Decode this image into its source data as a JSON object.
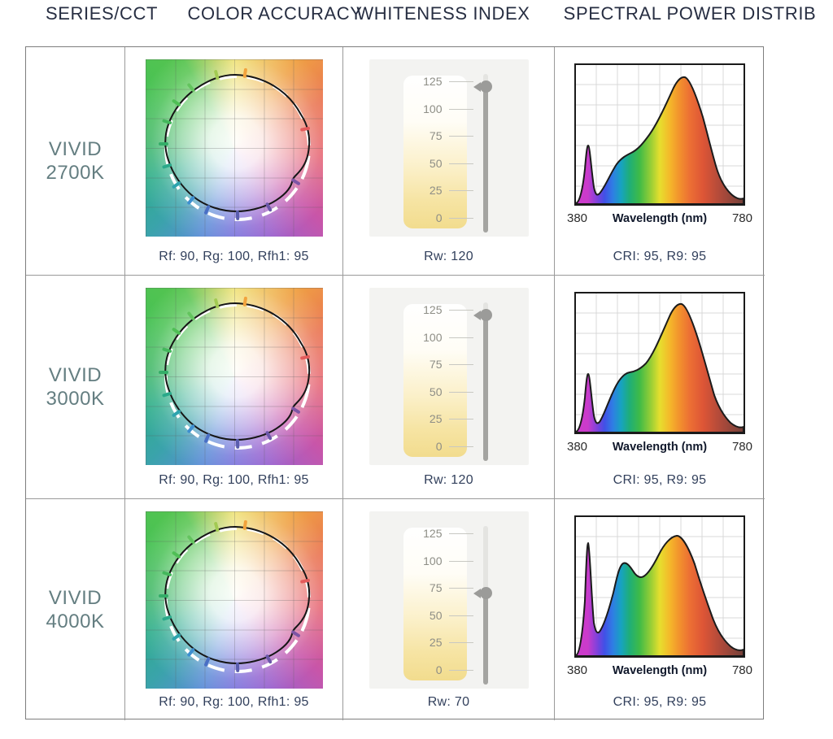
{
  "header": {
    "columns": [
      "SERIES/CCT",
      "COLOR ACCURACY",
      "WHITENESS INDEX",
      "SPECTRAL POWER DISTRIB"
    ]
  },
  "whiteness_scale": [
    "125",
    "100",
    "75",
    "50",
    "25",
    "0"
  ],
  "spd_axis": {
    "min": "380",
    "max": "780",
    "label": "Wavelength (nm)"
  },
  "colors": {
    "header_text": "#272e42",
    "stat_text": "#32405c",
    "series_text": "#647e81",
    "gauge_track": "#a4a4a1",
    "gauge_knob": "#9b9b99",
    "gauge_panel": "#f3f3f1"
  },
  "rows": [
    {
      "series": {
        "line1": "VIVID",
        "line2": "2700K"
      },
      "color_accuracy": {
        "stats": "Rf: 90, Rg: 100, Rfh1: 95",
        "rf": 90,
        "rg": 100,
        "rfh1": 95
      },
      "whiteness": {
        "value": 120,
        "label": "Rw: 120"
      },
      "spd": {
        "stats": "CRI: 95, R9: 95",
        "cri": 95,
        "r9": 95
      }
    },
    {
      "series": {
        "line1": "VIVID",
        "line2": "3000K"
      },
      "color_accuracy": {
        "stats": "Rf: 90, Rg: 100, Rfh1: 95",
        "rf": 90,
        "rg": 100,
        "rfh1": 95
      },
      "whiteness": {
        "value": 120,
        "label": "Rw: 120"
      },
      "spd": {
        "stats": "CRI: 95, R9: 95",
        "cri": 95,
        "r9": 95
      }
    },
    {
      "series": {
        "line1": "VIVID",
        "line2": "4000K"
      },
      "color_accuracy": {
        "stats": "Rf: 90, Rg: 100, Rfh1: 95",
        "rf": 90,
        "rg": 100,
        "rfh1": 95
      },
      "whiteness": {
        "value": 70,
        "label": "Rw: 70"
      },
      "spd": {
        "stats": "CRI: 95, R9: 95",
        "cri": 95,
        "r9": 95
      }
    }
  ],
  "chart_data": [
    {
      "row": "VIVID 2700K",
      "color_accuracy": {
        "type": "tm30-color-vector",
        "rf": 90,
        "rg": 100,
        "rfh1": 95,
        "description": "measured gamut (black line) vs reference circle (white dashed) over hue-wheel background with 6x6 grid"
      },
      "whiteness": {
        "type": "gauge",
        "label": "Rw",
        "value": 120,
        "range": [
          0,
          125
        ],
        "ticks": [
          0,
          25,
          50,
          75,
          100,
          125
        ]
      },
      "spd": {
        "type": "area",
        "title": "",
        "xlabel": "Wavelength (nm)",
        "xlim": [
          380,
          780
        ],
        "ylim": [
          0,
          1
        ],
        "grid": true,
        "x": [
          380,
          395,
          405,
          415,
          430,
          450,
          475,
          500,
          520,
          545,
          570,
          595,
          615,
          635,
          660,
          685,
          710,
          740,
          780
        ],
        "y": [
          0.02,
          0.12,
          0.42,
          0.12,
          0.08,
          0.15,
          0.27,
          0.34,
          0.42,
          0.52,
          0.7,
          0.88,
          0.95,
          0.88,
          0.62,
          0.35,
          0.2,
          0.1,
          0.05
        ]
      }
    },
    {
      "row": "VIVID 3000K",
      "color_accuracy": {
        "type": "tm30-color-vector",
        "rf": 90,
        "rg": 100,
        "rfh1": 95,
        "description": "measured gamut (black line) vs reference circle (white dashed) over hue-wheel background with 6x6 grid"
      },
      "whiteness": {
        "type": "gauge",
        "label": "Rw",
        "value": 120,
        "range": [
          0,
          125
        ],
        "ticks": [
          0,
          25,
          50,
          75,
          100,
          125
        ]
      },
      "spd": {
        "type": "area",
        "title": "",
        "xlabel": "Wavelength (nm)",
        "xlim": [
          380,
          780
        ],
        "ylim": [
          0,
          1
        ],
        "grid": true,
        "x": [
          380,
          395,
          405,
          415,
          430,
          450,
          475,
          500,
          520,
          545,
          570,
          595,
          615,
          635,
          660,
          685,
          710,
          740,
          780
        ],
        "y": [
          0.02,
          0.12,
          0.42,
          0.12,
          0.1,
          0.22,
          0.42,
          0.45,
          0.47,
          0.55,
          0.7,
          0.88,
          0.94,
          0.86,
          0.6,
          0.34,
          0.2,
          0.1,
          0.05
        ]
      }
    },
    {
      "row": "VIVID 4000K",
      "color_accuracy": {
        "type": "tm30-color-vector",
        "rf": 90,
        "rg": 100,
        "rfh1": 95,
        "description": "measured gamut (black line) vs reference circle (white dashed) over hue-wheel background with 6x6 grid"
      },
      "whiteness": {
        "type": "gauge",
        "label": "Rw",
        "value": 70,
        "range": [
          0,
          125
        ],
        "ticks": [
          0,
          25,
          50,
          75,
          100,
          125
        ]
      },
      "spd": {
        "type": "area",
        "title": "",
        "xlabel": "Wavelength (nm)",
        "xlim": [
          380,
          780
        ],
        "ylim": [
          0,
          1
        ],
        "grid": true,
        "x": [
          380,
          400,
          408,
          420,
          440,
          465,
          488,
          510,
          532,
          560,
          590,
          615,
          635,
          660,
          690,
          720,
          750,
          780
        ],
        "y": [
          0.02,
          0.3,
          0.82,
          0.22,
          0.35,
          0.6,
          0.68,
          0.63,
          0.58,
          0.65,
          0.8,
          0.88,
          0.8,
          0.55,
          0.3,
          0.15,
          0.08,
          0.05
        ]
      }
    }
  ]
}
